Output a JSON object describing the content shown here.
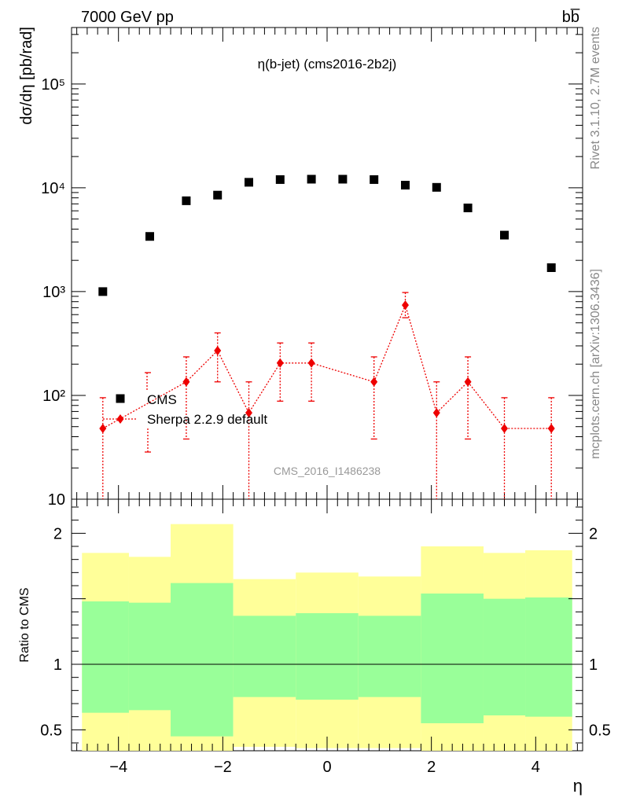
{
  "header": {
    "energy_label": "7000 GeV pp",
    "process_label": "bb̅",
    "side_rivet": "Rivet 3.1.10,  2.7M events",
    "side_mcplots": "mcplots.cern.ch [arXiv:1306.3436]",
    "watermark": "CMS_2016_I1486238"
  },
  "chart_data": [
    {
      "type": "scatter",
      "title": "η(b-jet) (cms2016-2b2j)",
      "xlabel": "η",
      "ylabel": "dσ/dη [pb/rad]",
      "yscale": "log",
      "xlim": [
        -4.9,
        4.9
      ],
      "ylim": [
        10,
        350000
      ],
      "y_ticks": [
        {
          "value": 10,
          "label": "10"
        },
        {
          "value": 100,
          "label": "10²"
        },
        {
          "value": 1000,
          "label": "10³"
        },
        {
          "value": 10000,
          "label": "10⁴"
        },
        {
          "value": 100000,
          "label": "10⁵"
        }
      ],
      "legend_position": "lower-left",
      "series": [
        {
          "name": "CMS",
          "marker": "square",
          "color": "#000000",
          "x": [
            -4.3,
            -3.4,
            -2.7,
            -2.1,
            -1.5,
            -0.9,
            -0.3,
            0.3,
            0.9,
            1.5,
            2.1,
            2.7,
            3.4,
            4.3
          ],
          "y": [
            1000,
            3400,
            7500,
            8500,
            11300,
            12000,
            12100,
            12100,
            12000,
            10600,
            10100,
            6400,
            3500,
            1700
          ]
        },
        {
          "name": "Sherpa 2.2.9 default",
          "marker": "diamond",
          "color": "#ee0000",
          "line": "dotted",
          "x": [
            -4.3,
            -2.7,
            -2.1,
            -1.5,
            -0.9,
            -0.3,
            0.9,
            1.5,
            2.1,
            2.7,
            3.4,
            4.3
          ],
          "y": [
            48,
            135,
            270,
            68,
            205,
            205,
            135,
            740,
            68,
            135,
            48,
            48
          ],
          "y_low": [
            8,
            38,
            135,
            8,
            88,
            88,
            38,
            560,
            8,
            38,
            8,
            8
          ],
          "y_high": [
            95,
            235,
            400,
            135,
            320,
            320,
            235,
            980,
            135,
            235,
            95,
            95
          ],
          "legend_err_low": 28,
          "legend_err_high": 165
        }
      ]
    },
    {
      "type": "area",
      "ylabel": "Ratio to CMS",
      "xlabel": "η",
      "xlim": [
        -4.9,
        4.9
      ],
      "ylim": [
        0.34,
        2.26
      ],
      "x_ticks": [
        {
          "value": -4,
          "label": "−4"
        },
        {
          "value": -2,
          "label": "−2"
        },
        {
          "value": 0,
          "label": "0"
        },
        {
          "value": 2,
          "label": "2"
        },
        {
          "value": 4,
          "label": "4"
        }
      ],
      "y_ticks": [
        {
          "value": 0.5,
          "label": "0.5"
        },
        {
          "value": 1,
          "label": "1"
        },
        {
          "value": 2,
          "label": "2"
        }
      ],
      "reference_line": 1,
      "bins": [
        {
          "lo": -4.7,
          "hi": -3.8,
          "band_2_low": 0.3,
          "band_2_high": 1.85,
          "band_1_low": 0.63,
          "band_1_high": 1.48
        },
        {
          "lo": -3.8,
          "hi": -3.0,
          "band_2_low": 0.3,
          "band_2_high": 1.82,
          "band_1_low": 0.65,
          "band_1_high": 1.47
        },
        {
          "lo": -3.0,
          "hi": -1.8,
          "band_2_low": 0.3,
          "band_2_high": 2.07,
          "band_1_low": 0.45,
          "band_1_high": 1.62
        },
        {
          "lo": -1.8,
          "hi": -0.6,
          "band_2_low": 0.37,
          "band_2_high": 1.65,
          "band_1_low": 0.75,
          "band_1_high": 1.37
        },
        {
          "lo": -0.6,
          "hi": 0.6,
          "band_2_low": 0.36,
          "band_2_high": 1.7,
          "band_1_low": 0.73,
          "band_1_high": 1.39
        },
        {
          "lo": 0.6,
          "hi": 1.8,
          "band_2_low": 0.36,
          "band_2_high": 1.67,
          "band_1_low": 0.75,
          "band_1_high": 1.37
        },
        {
          "lo": 1.8,
          "hi": 3.0,
          "band_2_low": 0.3,
          "band_2_high": 1.9,
          "band_1_low": 0.55,
          "band_1_high": 1.54
        },
        {
          "lo": 3.0,
          "hi": 3.8,
          "band_2_low": 0.3,
          "band_2_high": 1.85,
          "band_1_low": 0.61,
          "band_1_high": 1.5
        },
        {
          "lo": 3.8,
          "hi": 4.7,
          "band_2_low": 0.3,
          "band_2_high": 1.87,
          "band_1_low": 0.6,
          "band_1_high": 1.51
        }
      ],
      "colors": {
        "band_2": "#ffff99",
        "band_1": "#99ff99"
      }
    }
  ]
}
